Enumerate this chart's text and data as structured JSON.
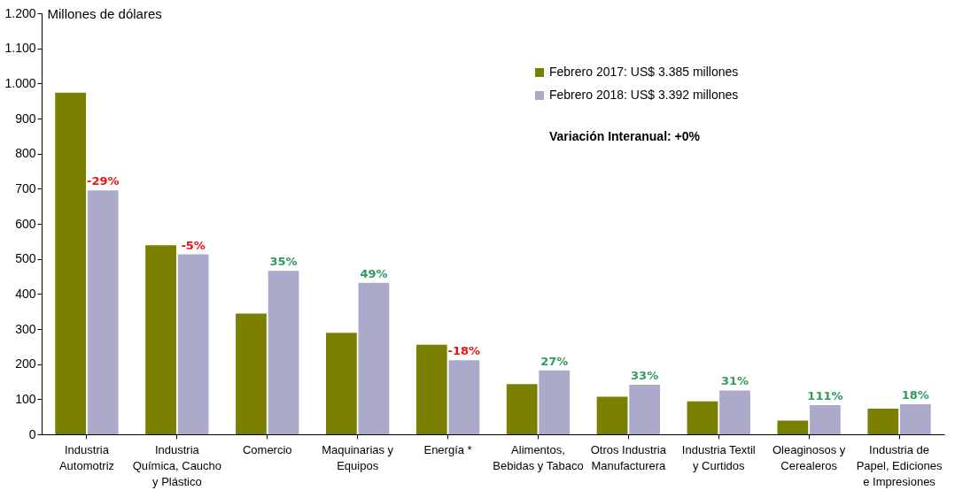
{
  "chart_data": {
    "type": "bar",
    "ylabel": "Millones de dólares",
    "categories": [
      "Industria Automotriz",
      "Industria Química, Caucho y Plástico",
      "Comercio",
      "Maquinarias y Equipos",
      "Energía *",
      "Alimentos, Bebidas y Tabaco",
      "Otros Industria Manufacturera",
      "Industria Textil y Curtidos",
      "Oleaginosos y Cerealeros",
      "Industria de Papel, Ediciones e Impresiones"
    ],
    "series": [
      {
        "name": "Febrero 2017: US$ 3.385 millones",
        "color": "#7a7f00",
        "values": [
          974,
          539,
          344,
          289,
          255,
          143,
          107,
          94,
          39,
          73
        ]
      },
      {
        "name": "Febrero 2018: US$ 3.392 millones",
        "color": "#acaacb",
        "values": [
          695,
          513,
          466,
          432,
          211,
          182,
          141,
          125,
          83,
          86
        ]
      }
    ],
    "ylim": [
      0,
      1200
    ],
    "yticks": [
      0,
      100,
      200,
      300,
      400,
      500,
      600,
      700,
      800,
      900,
      {
        "value": 1000,
        "label": "1.000"
      },
      {
        "value": 1100,
        "label": "1.100"
      },
      {
        "value": 1200,
        "label": "1.200"
      }
    ],
    "grid": false,
    "legend": "top right",
    "annotations": [
      "Variación Interanual: +0%",
      {
        "text": "-29%",
        "x": "Industria Automotriz",
        "y": 695
      },
      {
        "text": "-5%",
        "x": "Industria Química, Caucho y Plástico",
        "y": 513
      },
      {
        "text": "35%",
        "x": "Comercio",
        "y": 466
      },
      {
        "text": "49%",
        "x": "Maquinarias y Equipos",
        "y": 432
      },
      {
        "text": "-18%",
        "x": "Energía *",
        "y": 211
      },
      {
        "text": "27%",
        "x": "Alimentos, Bebidas y Tabaco",
        "y": 182
      },
      {
        "text": "33%",
        "x": "Otros Industria Manufacturera",
        "y": 141
      },
      {
        "text": "31%",
        "x": "Industria Textil y Curtidos",
        "y": 125
      },
      {
        "text": "111%",
        "x": "Oleaginosos y Cerealeros",
        "y": 83
      },
      {
        "text": "18%",
        "x": "Industria de Papel, Ediciones e Impresiones",
        "y": 86
      }
    ]
  }
}
